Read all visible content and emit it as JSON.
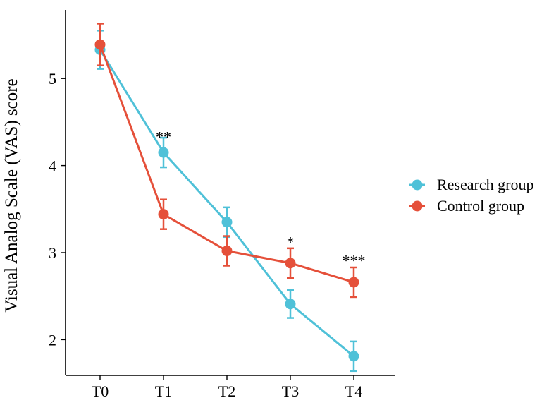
{
  "chart_data": {
    "type": "line",
    "title": "",
    "xlabel": "",
    "ylabel": "Visual Analog Scale (VAS) score",
    "categories": [
      "T0",
      "T1",
      "T2",
      "T3",
      "T4"
    ],
    "ylim": [
      1.6,
      5.9
    ],
    "yticks": [
      2,
      3,
      4,
      5
    ],
    "legend_position": "right",
    "series": [
      {
        "name": "Research group",
        "color": "#4fc1d8",
        "values": [
          5.33,
          4.15,
          3.35,
          2.41,
          1.81
        ],
        "errors": [
          0.22,
          0.17,
          0.17,
          0.16,
          0.17
        ]
      },
      {
        "name": "Control group",
        "color": "#e5503a",
        "values": [
          5.39,
          3.44,
          3.02,
          2.88,
          2.66
        ],
        "errors": [
          0.24,
          0.17,
          0.17,
          0.17,
          0.17
        ]
      }
    ],
    "annotations": [
      {
        "category": "T1",
        "label": "**",
        "y": 4.35
      },
      {
        "category": "T3",
        "label": "*",
        "y": 3.14
      },
      {
        "category": "T4",
        "label": "***",
        "y": 2.93
      }
    ]
  }
}
